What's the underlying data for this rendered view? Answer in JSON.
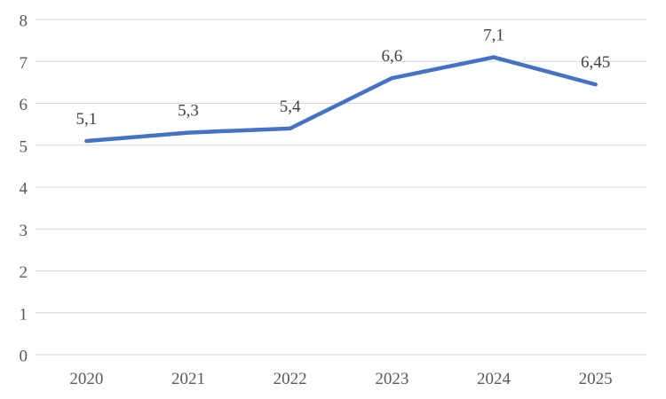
{
  "chart_data": {
    "type": "line",
    "title": "",
    "categories": [
      "2020",
      "2021",
      "2022",
      "2023",
      "2024",
      "2025"
    ],
    "series": [
      {
        "name": "",
        "values": [
          5.1,
          5.3,
          5.4,
          6.6,
          7.1,
          6.45
        ],
        "data_labels": [
          "5,1",
          "5,3",
          "5,4",
          "6,6",
          "7,1",
          "6,45"
        ],
        "color": "#4472C4"
      }
    ],
    "xlabel": "",
    "ylabel": "",
    "ylim": [
      0,
      8
    ],
    "ytick_step": 1,
    "yticks": [
      "0",
      "1",
      "2",
      "3",
      "4",
      "5",
      "6",
      "7",
      "8"
    ],
    "grid": "horizontal",
    "legend": "none",
    "data_label_position": "above",
    "colors": {
      "line": "#4472C4",
      "gridline": "#D9D9D9",
      "axis_line": "#D9D9D9",
      "tick_label": "#595959",
      "data_label": "#404040",
      "background": "#FFFFFF"
    }
  }
}
